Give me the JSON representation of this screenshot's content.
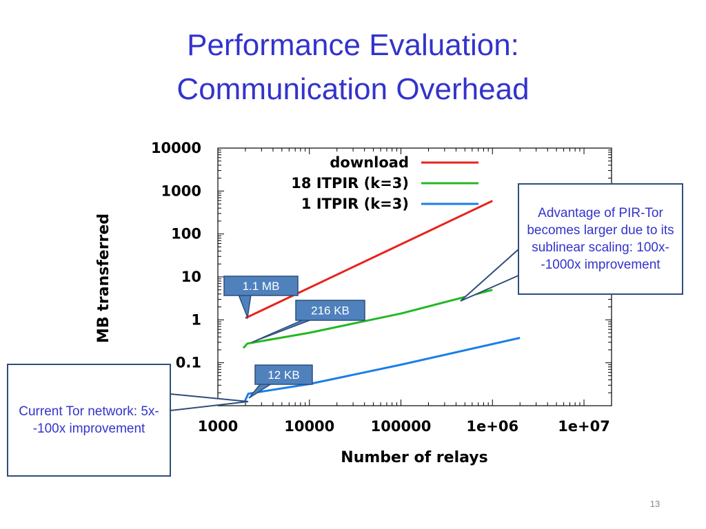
{
  "slide": {
    "title_line1": "Performance Evaluation:",
    "title_line2": "Communication Overhead",
    "slide_number": "13"
  },
  "chart_data": {
    "type": "line",
    "xlabel": "Number of relays",
    "ylabel": "MB transferred",
    "xscale": "log",
    "yscale": "log",
    "xlim": [
      1000,
      20000000
    ],
    "ylim": [
      0.01,
      10000
    ],
    "xticks": [
      "1000",
      "10000",
      "100000",
      "1e+06",
      "1e+07"
    ],
    "xtick_values": [
      1000,
      10000,
      100000,
      1000000,
      10000000
    ],
    "yticks": [
      "10000",
      "1000",
      "100",
      "10",
      "1",
      "0.1"
    ],
    "ytick_values": [
      10000,
      1000,
      100,
      10,
      1,
      0.1
    ],
    "legend_position": "top-right",
    "series": [
      {
        "name": "download",
        "color": "#e8221c",
        "x": [
          2000,
          1000000
        ],
        "y": [
          1.1,
          590
        ]
      },
      {
        "name": "18 ITPIR (k=3)",
        "color": "#22b822",
        "x": [
          1900,
          2100,
          10000,
          100000,
          1000000
        ],
        "y": [
          0.22,
          0.28,
          0.5,
          1.4,
          5.0
        ]
      },
      {
        "name": "1 ITPIR (k=3)",
        "color": "#1a7ee8",
        "x": [
          1980,
          2150,
          10000,
          100000,
          2000000
        ],
        "y": [
          0.013,
          0.019,
          0.032,
          0.09,
          0.38
        ]
      }
    ],
    "data_labels": [
      {
        "text": "1.1 MB",
        "series": "download"
      },
      {
        "text": "216 KB",
        "series": "18 ITPIR (k=3)"
      },
      {
        "text": "12 KB",
        "series": "1 ITPIR (k=3)"
      }
    ]
  },
  "callouts": {
    "right": "Advantage of PIR-Tor becomes larger due to its sublinear scaling: 100x--1000x improvement",
    "left": "Current Tor network: 5x--100x improvement"
  },
  "colors": {
    "title": "#3333cc",
    "callout_border": "#2e4d7a",
    "label_box_fill": "#4f81bd"
  }
}
